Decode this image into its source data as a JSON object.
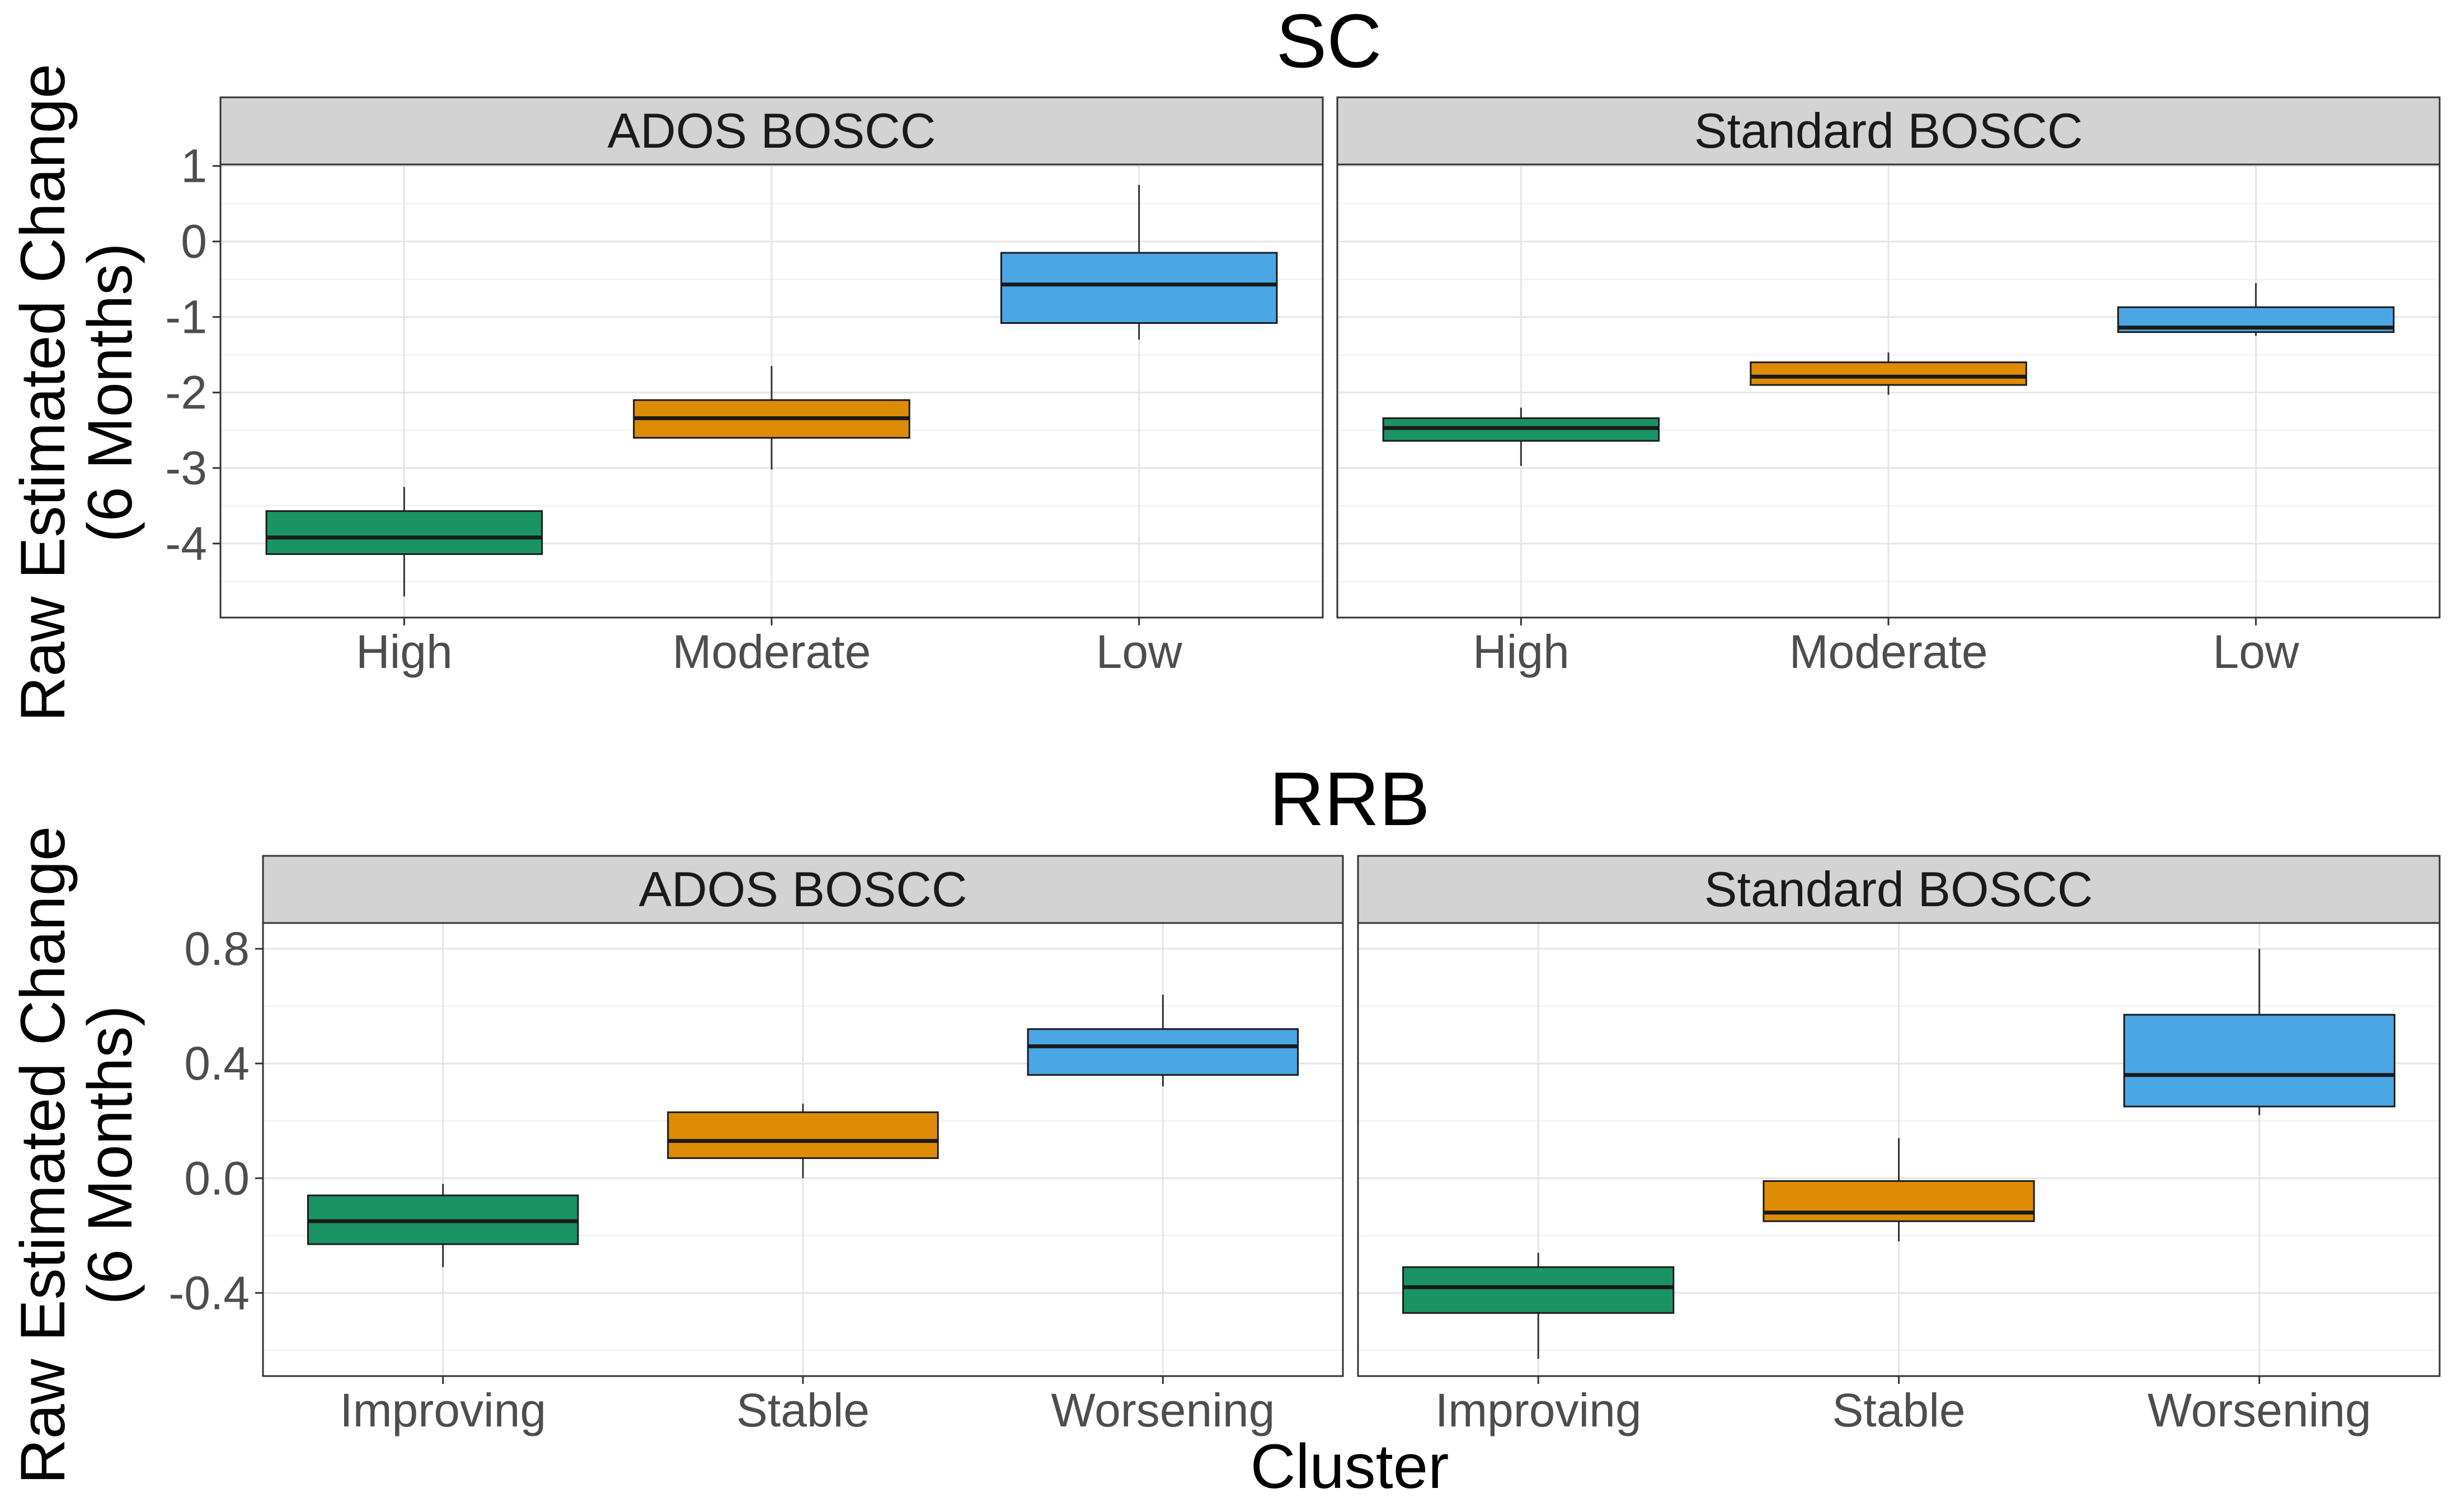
{
  "xlabel": "Cluster",
  "ylabel_line1": "Raw Estimated Change",
  "ylabel_line2": "(6 Months)",
  "colors": {
    "first": "#1a9465",
    "second": "#de8c06",
    "third": "#4aa6e4"
  },
  "chart_data": [
    {
      "type": "boxplot",
      "title": "SC",
      "ylim": [
        -4.98,
        1.02
      ],
      "yticks": [
        1,
        0,
        -1,
        -2,
        -3,
        -4
      ],
      "ytick_labels": [
        "1",
        "0",
        "-1",
        "-2",
        "-3",
        "-4"
      ],
      "categories": [
        "High",
        "Moderate",
        "Low"
      ],
      "facets": [
        {
          "strip": "ADOS BOSCC",
          "boxes": [
            {
              "category": "High",
              "whisker_low": -4.7,
              "q1": -4.14,
              "median": -3.92,
              "q3": -3.57,
              "whisker_high": -3.25
            },
            {
              "category": "Moderate",
              "whisker_low": -3.02,
              "q1": -2.6,
              "median": -2.34,
              "q3": -2.1,
              "whisker_high": -1.65
            },
            {
              "category": "Low",
              "whisker_low": -1.3,
              "q1": -1.08,
              "median": -0.57,
              "q3": -0.15,
              "whisker_high": 0.75
            }
          ]
        },
        {
          "strip": "Standard BOSCC",
          "boxes": [
            {
              "category": "High",
              "whisker_low": -2.97,
              "q1": -2.64,
              "median": -2.47,
              "q3": -2.34,
              "whisker_high": -2.2
            },
            {
              "category": "Moderate",
              "whisker_low": -2.03,
              "q1": -1.9,
              "median": -1.79,
              "q3": -1.6,
              "whisker_high": -1.47
            },
            {
              "category": "Low",
              "whisker_low": -1.25,
              "q1": -1.2,
              "median": -1.14,
              "q3": -0.87,
              "whisker_high": -0.55
            }
          ]
        }
      ]
    },
    {
      "type": "boxplot",
      "title": "RRB",
      "ylim": [
        -0.69,
        0.89
      ],
      "yticks": [
        0.8,
        0.4,
        0.0,
        -0.4
      ],
      "ytick_labels": [
        "0.8",
        "0.4",
        "0.0",
        "-0.4"
      ],
      "categories": [
        "Improving",
        "Stable",
        "Worsening"
      ],
      "facets": [
        {
          "strip": "ADOS BOSCC",
          "boxes": [
            {
              "category": "Improving",
              "whisker_low": -0.31,
              "q1": -0.23,
              "median": -0.15,
              "q3": -0.06,
              "whisker_high": -0.02
            },
            {
              "category": "Stable",
              "whisker_low": 0.0,
              "q1": 0.07,
              "median": 0.13,
              "q3": 0.23,
              "whisker_high": 0.26
            },
            {
              "category": "Worsening",
              "whisker_low": 0.32,
              "q1": 0.36,
              "median": 0.46,
              "q3": 0.52,
              "whisker_high": 0.64
            }
          ]
        },
        {
          "strip": "Standard BOSCC",
          "boxes": [
            {
              "category": "Improving",
              "whisker_low": -0.63,
              "q1": -0.47,
              "median": -0.38,
              "q3": -0.31,
              "whisker_high": -0.26
            },
            {
              "category": "Stable",
              "whisker_low": -0.22,
              "q1": -0.15,
              "median": -0.12,
              "q3": -0.01,
              "whisker_high": 0.14
            },
            {
              "category": "Worsening",
              "whisker_low": 0.22,
              "q1": 0.25,
              "median": 0.36,
              "q3": 0.57,
              "whisker_high": 0.8
            }
          ]
        }
      ]
    }
  ]
}
